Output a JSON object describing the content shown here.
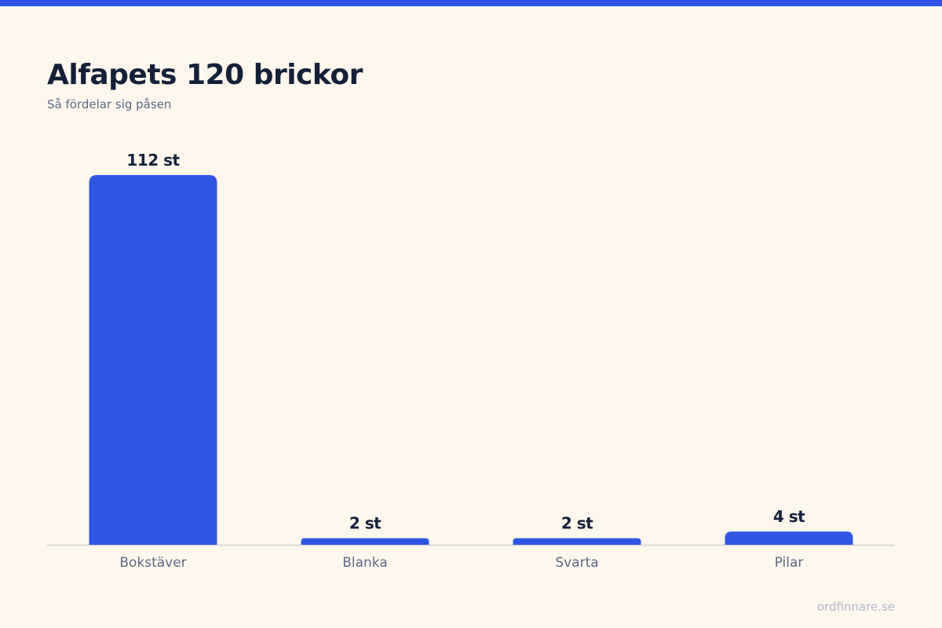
{
  "header": {
    "title": "Alfapets 120 brickor",
    "subtitle": "Så fördelar sig påsen"
  },
  "footer": {
    "source": "ordfinnare.se"
  },
  "colors": {
    "background": "#fef7ee",
    "accent": "#2f55e4",
    "title": "#14203a",
    "subtitle": "#5c6884",
    "axis": "#dcdad6",
    "footer": "#b2b9c7"
  },
  "chart_data": {
    "type": "bar",
    "categories": [
      "Bokstäver",
      "Blanka",
      "Svarta",
      "Pilar"
    ],
    "values": [
      112,
      2,
      2,
      4
    ],
    "value_labels": [
      "112 st",
      "2 st",
      "2 st",
      "4 st"
    ],
    "title": "Alfapets 120 brickor",
    "subtitle": "Så fördelar sig påsen",
    "xlabel": "",
    "ylabel": "",
    "ylim": [
      0,
      112
    ],
    "grid": false,
    "legend": "none"
  }
}
